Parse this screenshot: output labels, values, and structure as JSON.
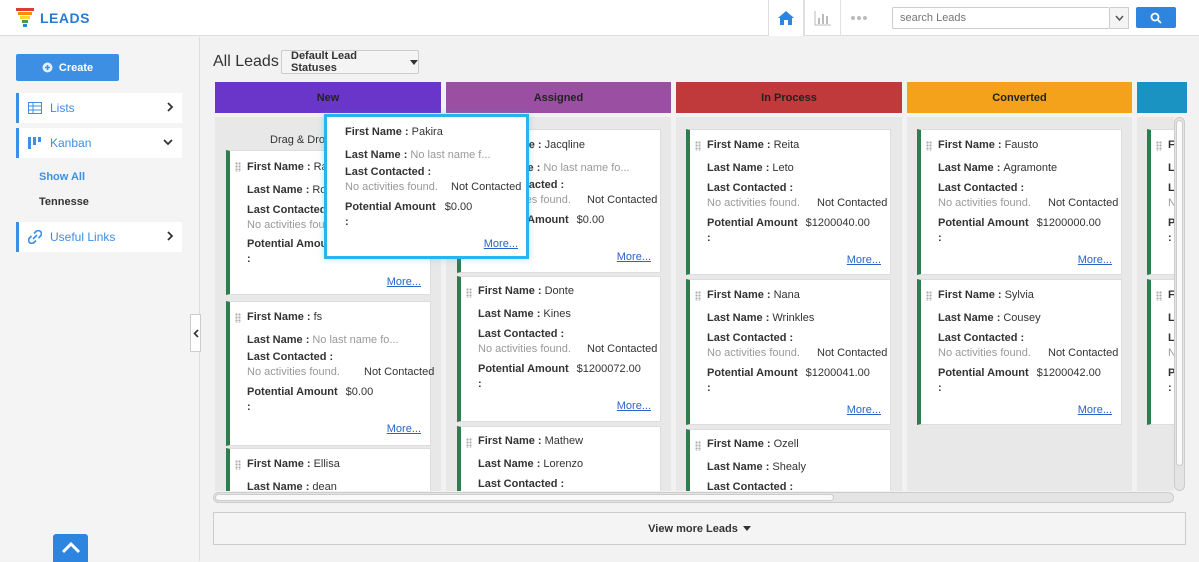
{
  "app": {
    "title": "LEADS"
  },
  "search": {
    "placeholder": "search Leads"
  },
  "sidebar": {
    "create_label": "Create",
    "lists_label": "Lists",
    "kanban_label": "Kanban",
    "show_all": "Show All",
    "tennesse": "Tennesse",
    "useful_links": "Useful Links"
  },
  "main": {
    "title": "All Leads",
    "status_dropdown": "Default Lead Statuses",
    "drag_tip": "Drag & Drop",
    "view_more": "View more Leads"
  },
  "labels": {
    "first_name": "First Name :",
    "last_name": "Last Name :",
    "last_contacted": "Last Contacted :",
    "potential_amount": "Potential Amount",
    "colon": ":",
    "no_activities": "No activities found.",
    "not_contacted": "Not Contacted",
    "more": "More..."
  },
  "columns": [
    {
      "name": "New",
      "color": "#6a35c9"
    },
    {
      "name": "Assigned",
      "color": "#9b4fa3"
    },
    {
      "name": "In Process",
      "color": "#c0393b"
    },
    {
      "name": "Converted",
      "color": "#f4a11c"
    },
    {
      "name": "",
      "color": "#1a93c3"
    }
  ],
  "popup": {
    "first_name": "Pakira",
    "last_name": "No last name f...",
    "amount": "$0.00"
  },
  "cards": {
    "new": [
      {
        "first_name": "Ra",
        "last_name": "Ro",
        "last_contacted": "No activities found",
        "amount": ""
      },
      {
        "first_name": "fs",
        "last_name": "No last name fo...",
        "amount": "$0.00"
      },
      {
        "first_name": "Ellisa",
        "last_name": "dean"
      }
    ],
    "assigned": [
      {
        "first_name": "Jacqline",
        "last_name": "No last name fo...",
        "amount": "$0.00"
      },
      {
        "first_name": "Donte",
        "last_name": "Kines",
        "amount": "$1200072.00"
      },
      {
        "first_name": "Mathew",
        "last_name": "Lorenzo"
      }
    ],
    "in_process": [
      {
        "first_name": "Reita",
        "last_name": "Leto",
        "amount": "$1200040.00"
      },
      {
        "first_name": "Nana",
        "last_name": "Wrinkles",
        "amount": "$1200041.00"
      },
      {
        "first_name": "Ozell",
        "last_name": "Shealy"
      }
    ],
    "converted": [
      {
        "first_name": "Fausto",
        "last_name": "Agramonte",
        "amount": "$1200000.00"
      },
      {
        "first_name": "Sylvia",
        "last_name": "Cousey",
        "amount": "$1200042.00"
      }
    ],
    "partial": [
      {
        "first_name": "F",
        "last_name": "L",
        "no": "N",
        "pot": "P"
      },
      {
        "first_name": "F",
        "last_name": "L",
        "no": "N",
        "pot": "P"
      }
    ]
  }
}
